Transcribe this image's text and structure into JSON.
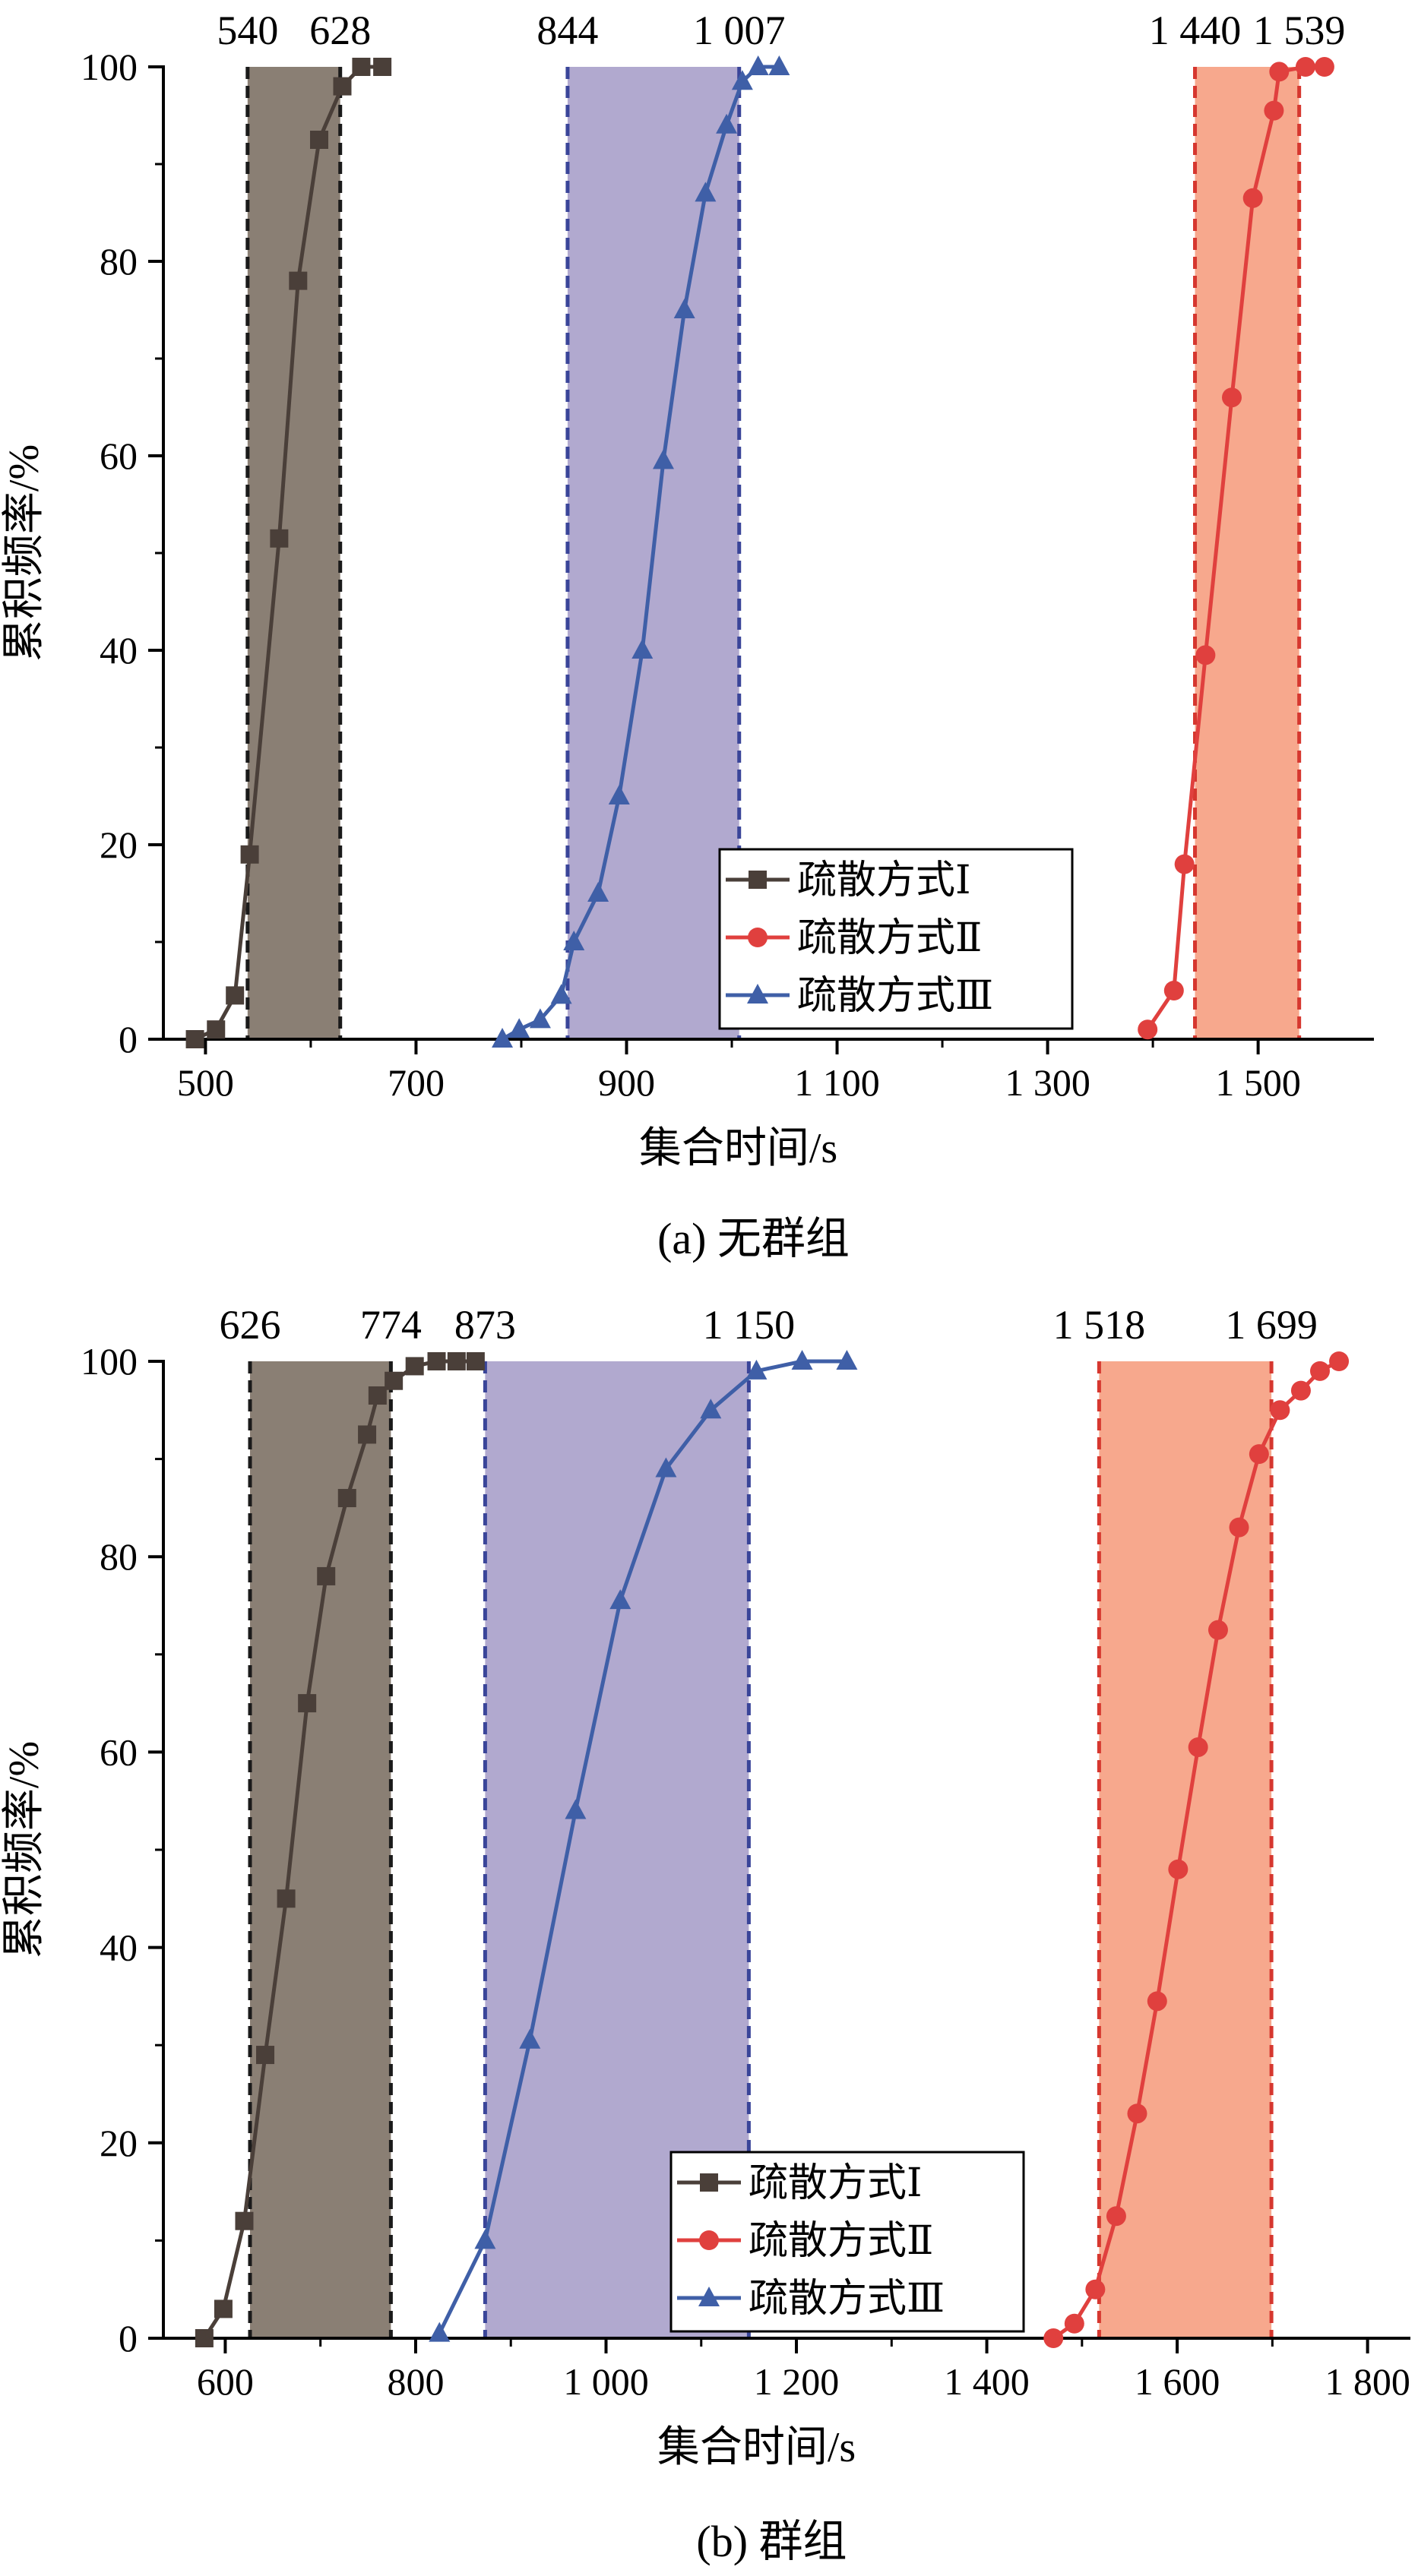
{
  "chart_data": [
    {
      "type": "line",
      "caption": "(a) 无群组",
      "xlabel": "集合时间/s",
      "ylabel": "累积频率/%",
      "xlim": [
        460,
        1610
      ],
      "ylim": [
        0,
        100
      ],
      "xticks": [
        500,
        700,
        900,
        1100,
        1300,
        1500
      ],
      "xtick_labels": [
        "500",
        "700",
        "900",
        "1 100",
        "1 300",
        "1 500"
      ],
      "yticks": [
        0,
        20,
        40,
        60,
        80,
        100
      ],
      "ytick_labels": [
        "0",
        "20",
        "40",
        "60",
        "80",
        "100"
      ],
      "legend_position": "lower-center",
      "bands": [
        {
          "x0": 540,
          "x1": 628,
          "label0": "540",
          "label1": "628",
          "color": "#8a7f74",
          "line": "#1a1a1a"
        },
        {
          "x0": 844,
          "x1": 1007,
          "label0": "844",
          "label1": "1 007",
          "color": "#b1a9cf",
          "line": "#3a4599"
        },
        {
          "x0": 1440,
          "x1": 1539,
          "label0": "1 440",
          "label1": "1 539",
          "color": "#f7a88d",
          "line": "#d6372f"
        }
      ],
      "series": [
        {
          "name": "疏散方式Ⅰ",
          "color": "#4a3f39",
          "marker": "square",
          "x": [
            490,
            510,
            528,
            542,
            570,
            588,
            608,
            630,
            648,
            668
          ],
          "y": [
            0,
            1,
            4.5,
            19,
            51.5,
            78,
            92.5,
            98,
            100,
            100
          ]
        },
        {
          "name": "疏散方式Ⅱ",
          "color": "#e0403e",
          "marker": "circle",
          "x": [
            1395,
            1420,
            1430,
            1450,
            1475,
            1495,
            1515,
            1520,
            1545,
            1563
          ],
          "y": [
            1,
            5,
            18,
            39.5,
            66,
            86.5,
            95.5,
            99.5,
            100,
            100
          ]
        },
        {
          "name": "疏散方式Ⅲ",
          "color": "#3f5fa7",
          "marker": "triangle",
          "x": [
            782,
            798,
            818,
            838,
            850,
            873,
            893,
            915,
            935,
            955,
            975,
            995,
            1010,
            1025,
            1045
          ],
          "y": [
            0,
            1,
            2,
            4.5,
            10,
            15,
            25,
            40,
            59.5,
            75,
            87,
            94,
            98.5,
            100,
            100
          ]
        }
      ]
    },
    {
      "type": "line",
      "caption": "(b) 群组",
      "xlabel": "集合时间/s",
      "ylabel": "累积频率/%",
      "xlim": [
        535,
        1845
      ],
      "ylim": [
        0,
        100
      ],
      "xticks": [
        600,
        800,
        1000,
        1200,
        1400,
        1600,
        1800
      ],
      "xtick_labels": [
        "600",
        "800",
        "1 000",
        "1 200",
        "1 400",
        "1 600",
        "1 800"
      ],
      "yticks": [
        0,
        20,
        40,
        60,
        80,
        100
      ],
      "ytick_labels": [
        "0",
        "20",
        "40",
        "60",
        "80",
        "100"
      ],
      "legend_position": "lower-center",
      "bands": [
        {
          "x0": 626,
          "x1": 774,
          "label0": "626",
          "label1": "774",
          "color": "#8a7f74",
          "line": "#1a1a1a"
        },
        {
          "x0": 873,
          "x1": 1150,
          "label0": "873",
          "label1": "1 150",
          "color": "#b1a9cf",
          "line": "#3a4599"
        },
        {
          "x0": 1518,
          "x1": 1699,
          "label0": "1 518",
          "label1": "1 699",
          "color": "#f7a88d",
          "line": "#d6372f"
        }
      ],
      "series": [
        {
          "name": "疏散方式Ⅰ",
          "color": "#4a3f39",
          "marker": "square",
          "x": [
            578,
            598,
            620,
            642,
            664,
            686,
            706,
            728,
            749,
            760,
            777,
            799,
            822,
            843,
            863
          ],
          "y": [
            0,
            3,
            12,
            29,
            45,
            65,
            78,
            86,
            92.5,
            96.5,
            98,
            99.5,
            100,
            100,
            100
          ]
        },
        {
          "name": "疏散方式Ⅱ",
          "color": "#e0403e",
          "marker": "circle",
          "x": [
            1470,
            1492,
            1514,
            1536,
            1558,
            1579,
            1601,
            1622,
            1643,
            1665,
            1686,
            1708,
            1730,
            1750,
            1770
          ],
          "y": [
            0,
            1.5,
            5,
            12.5,
            23,
            34.5,
            48,
            60.5,
            72.5,
            83,
            90.5,
            95,
            97,
            99,
            100
          ]
        },
        {
          "name": "疏散方式Ⅲ",
          "color": "#3f5fa7",
          "marker": "triangle",
          "x": [
            825,
            873,
            920,
            968,
            1015,
            1063,
            1110,
            1158,
            1206,
            1253
          ],
          "y": [
            0.5,
            10,
            30.5,
            54,
            75.5,
            89,
            95,
            99,
            100,
            100
          ]
        }
      ]
    }
  ]
}
